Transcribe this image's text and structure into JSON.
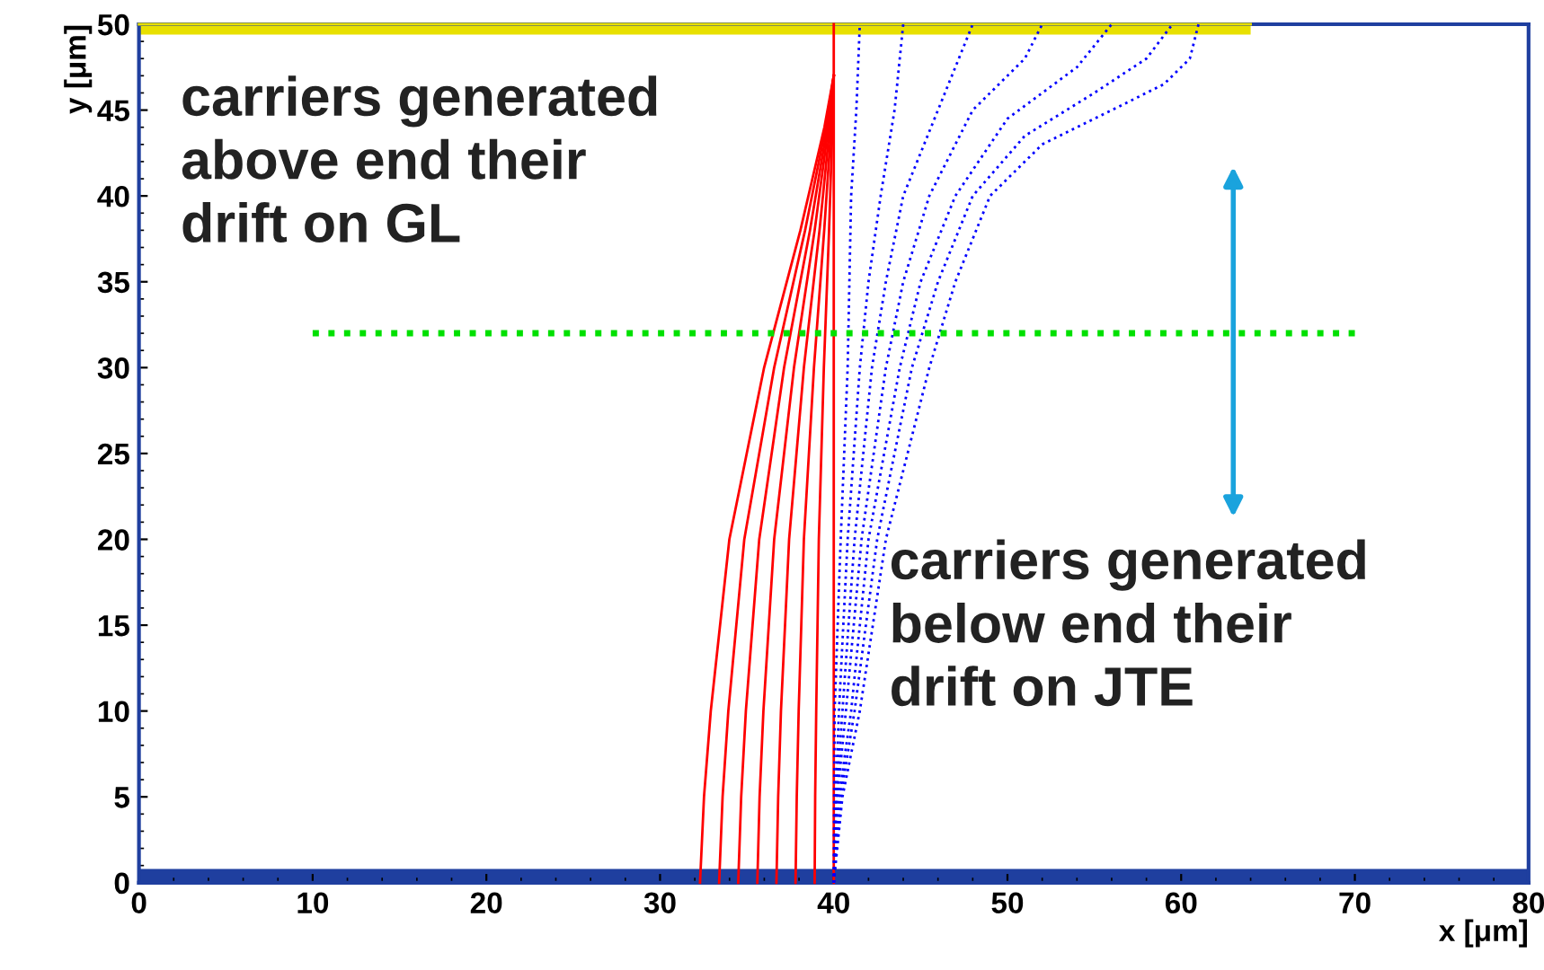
{
  "chart_data": {
    "type": "line",
    "xlabel": "x [μm]",
    "ylabel": "y [μm]",
    "xlim": [
      0,
      80
    ],
    "ylim": [
      0,
      50
    ],
    "xticks": [
      0,
      10,
      20,
      30,
      40,
      50,
      60,
      70,
      80
    ],
    "yticks": [
      0,
      5,
      10,
      15,
      20,
      25,
      30,
      35,
      40,
      45,
      50
    ],
    "grid": false,
    "legend": false,
    "annotations": [
      "carriers generated above end their drift on GL",
      "carriers generated below end their drift on JTE"
    ],
    "series": [
      {
        "color": "#e8e000",
        "x": [
          0,
          64
        ],
        "values": [
          50,
          50
        ],
        "lower": [
          49.4,
          49.4
        ],
        "upper": [
          50,
          50
        ],
        "line_style": "solid"
      },
      {
        "color": "#1f3f9f",
        "x": [
          0,
          80
        ],
        "values": [
          0,
          0
        ],
        "lower": [
          0,
          0
        ],
        "upper": [
          0.8,
          0.8
        ],
        "line_style": "solid"
      },
      {
        "color": "#ff0000",
        "line_style": "solid",
        "x": [
          32.3,
          32.53,
          32.92,
          33.99,
          35.99,
          38.08,
          39.46,
          40
        ],
        "values": [
          0,
          5,
          10,
          20,
          30,
          38,
          44,
          47
        ]
      },
      {
        "color": "#ff0000",
        "line_style": "solid",
        "x": [
          33.4,
          33.6,
          33.93,
          34.85,
          36.57,
          38.35,
          39.54,
          40
        ],
        "values": [
          0,
          5,
          10,
          20,
          30,
          38,
          44,
          47
        ]
      },
      {
        "color": "#ff0000",
        "line_style": "solid",
        "x": [
          34.5,
          34.67,
          34.94,
          35.71,
          37.14,
          38.63,
          39.62,
          40
        ],
        "values": [
          0,
          5,
          10,
          20,
          30,
          38,
          44,
          47
        ]
      },
      {
        "color": "#ff0000",
        "line_style": "solid",
        "x": [
          35.6,
          35.73,
          35.95,
          36.57,
          37.71,
          38.9,
          39.69,
          40
        ],
        "values": [
          0,
          5,
          10,
          20,
          30,
          38,
          44,
          47
        ]
      },
      {
        "color": "#ff0000",
        "line_style": "solid",
        "x": [
          36.7,
          36.8,
          36.96,
          37.43,
          38.28,
          39.18,
          39.77,
          40
        ],
        "values": [
          0,
          5,
          10,
          20,
          30,
          38,
          44,
          47
        ]
      },
      {
        "color": "#ff0000",
        "line_style": "solid",
        "x": [
          37.8,
          37.87,
          37.98,
          38.28,
          38.86,
          39.45,
          39.85,
          40
        ],
        "values": [
          0,
          5,
          10,
          20,
          30,
          38,
          44,
          47
        ]
      },
      {
        "color": "#ff0000",
        "line_style": "solid",
        "x": [
          38.9,
          38.93,
          38.99,
          39.14,
          39.43,
          39.73,
          39.92,
          40
        ],
        "values": [
          0,
          5,
          10,
          20,
          30,
          38,
          44,
          47
        ]
      },
      {
        "color": "#ff0000",
        "line_style": "solid",
        "x": [
          40,
          40
        ],
        "values": [
          0,
          50
        ]
      },
      {
        "color": "#0000ff",
        "line_style": "dotted",
        "x": [
          40,
          40.5,
          41.5,
          43,
          45.5,
          47,
          49,
          52,
          56,
          59,
          60.5,
          61
        ],
        "values": [
          0,
          5,
          10,
          20,
          30,
          35,
          40,
          43,
          45,
          46.5,
          48,
          50
        ]
      },
      {
        "color": "#0000ff",
        "line_style": "dotted",
        "x": [
          40,
          40.4,
          41.2,
          42.5,
          44.5,
          46,
          48,
          51,
          55,
          58,
          59.5
        ],
        "values": [
          0,
          5,
          10,
          20,
          30,
          35,
          40,
          43.5,
          46,
          48,
          50
        ]
      },
      {
        "color": "#0000ff",
        "line_style": "dotted",
        "x": [
          40,
          40.3,
          41,
          42,
          43.8,
          45,
          47,
          50,
          54,
          56
        ],
        "values": [
          0,
          5,
          10,
          20,
          30,
          35,
          40,
          44.5,
          47.5,
          50
        ]
      },
      {
        "color": "#0000ff",
        "line_style": "dotted",
        "x": [
          40,
          40.2,
          40.7,
          41.6,
          43,
          44,
          45.5,
          48,
          51,
          52
        ],
        "values": [
          0,
          5,
          10,
          20,
          30,
          35,
          40,
          45,
          48,
          50
        ]
      },
      {
        "color": "#0000ff",
        "line_style": "dotted",
        "x": [
          40,
          40.15,
          40.5,
          41.2,
          42.2,
          43,
          44,
          46,
          48
        ],
        "values": [
          0,
          5,
          10,
          20,
          30,
          35,
          40,
          45,
          50
        ]
      },
      {
        "color": "#0000ff",
        "line_style": "dotted",
        "x": [
          40,
          40.1,
          40.3,
          40.8,
          41.5,
          42,
          42.7,
          43.5,
          44
        ],
        "values": [
          0,
          5,
          10,
          20,
          30,
          35,
          40,
          45,
          50
        ]
      },
      {
        "color": "#0000ff",
        "line_style": "dotted",
        "x": [
          40,
          40.05,
          40.4,
          40.8,
          41,
          41.3,
          41.5
        ],
        "values": [
          0,
          10,
          20,
          30,
          40,
          45,
          50
        ]
      },
      {
        "color": "#00e000",
        "line_style": "dotted",
        "x": [
          10,
          70
        ],
        "values": [
          32,
          32
        ]
      }
    ]
  }
}
